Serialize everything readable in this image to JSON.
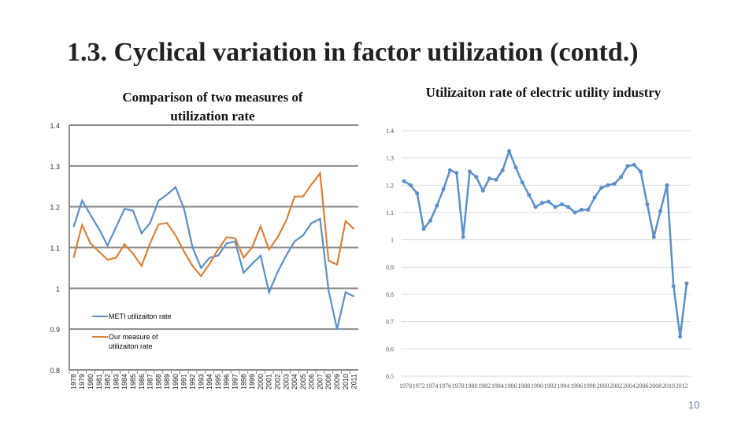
{
  "title": "1.3. Cyclical variation in factor utilization (contd.)",
  "page_number": "10",
  "chart_data": [
    {
      "type": "line",
      "title": "Comparison of two measures of utilization rate",
      "ylim": [
        0.8,
        1.4
      ],
      "yticks": [
        "0.8",
        "0.9",
        "1",
        "1.1",
        "1.2",
        "1.3",
        "1.4"
      ],
      "grid": true,
      "legend": "bottom-left",
      "categories": [
        "1978",
        "1979",
        "1980",
        "1981",
        "1982",
        "1983",
        "1984",
        "1985",
        "1986",
        "1987",
        "1988",
        "1989",
        "1990",
        "1991",
        "1992",
        "1993",
        "1994",
        "1995",
        "1996",
        "1997",
        "1998",
        "1999",
        "2000",
        "2001",
        "2002",
        "2003",
        "2004",
        "2005",
        "2006",
        "2007",
        "2008",
        "2009",
        "2010",
        "2011"
      ],
      "series": [
        {
          "name": "METI utilizaiton rate",
          "color": "#5b8fc7",
          "values": [
            1.15,
            1.215,
            1.18,
            1.145,
            1.105,
            1.15,
            1.195,
            1.19,
            1.135,
            1.16,
            1.215,
            1.23,
            1.248,
            1.195,
            1.1,
            1.05,
            1.075,
            1.08,
            1.11,
            1.115,
            1.038,
            1.06,
            1.08,
            0.99,
            1.04,
            1.08,
            1.115,
            1.13,
            1.16,
            1.17,
            0.995,
            0.9,
            0.99,
            0.98
          ]
        },
        {
          "name": "Our measure of utilizaiton rate",
          "color": "#d9823b",
          "values": [
            1.075,
            1.155,
            1.11,
            1.09,
            1.07,
            1.075,
            1.108,
            1.085,
            1.055,
            1.11,
            1.157,
            1.16,
            1.13,
            1.09,
            1.055,
            1.03,
            1.06,
            1.095,
            1.125,
            1.123,
            1.075,
            1.1,
            1.152,
            1.095,
            1.125,
            1.165,
            1.225,
            1.225,
            1.255,
            1.282,
            1.068,
            1.058,
            1.165,
            1.145
          ]
        }
      ]
    },
    {
      "type": "line",
      "title": "Utilizaiton rate of electric utility industry",
      "ylim": [
        0.5,
        1.4
      ],
      "yticks": [
        "0.5",
        "0.6",
        "0.7",
        "0.8",
        "0.9",
        "1",
        "1.1",
        "1.2",
        "1.3",
        "1.4"
      ],
      "grid": true,
      "markers": true,
      "x": [
        1970,
        1971,
        1972,
        1973,
        1974,
        1975,
        1976,
        1977,
        1978,
        1979,
        1980,
        1981,
        1982,
        1983,
        1984,
        1985,
        1986,
        1987,
        1988,
        1989,
        1990,
        1991,
        1992,
        1993,
        1994,
        1995,
        1996,
        1997,
        1998,
        1999,
        2000,
        2001,
        2002,
        2003,
        2004,
        2005,
        2006,
        2007,
        2008,
        2009,
        2010,
        2011,
        2012,
        2013
      ],
      "xticks": [
        "1970",
        "1972",
        "1974",
        "1976",
        "1978",
        "1980",
        "1982",
        "1984",
        "1986",
        "1988",
        "1990",
        "1992",
        "1994",
        "1996",
        "1998",
        "2000",
        "2002",
        "2004",
        "2006",
        "2008",
        "2010",
        "2012"
      ],
      "series": [
        {
          "color": "#5b8fc7",
          "values": [
            1.215,
            1.2,
            1.17,
            1.04,
            1.07,
            1.125,
            1.185,
            1.255,
            1.245,
            1.01,
            1.25,
            1.23,
            1.18,
            1.225,
            1.22,
            1.255,
            1.325,
            1.265,
            1.21,
            1.165,
            1.12,
            1.135,
            1.14,
            1.12,
            1.13,
            1.12,
            1.1,
            1.11,
            1.11,
            1.155,
            1.19,
            1.2,
            1.205,
            1.23,
            1.27,
            1.275,
            1.25,
            1.13,
            1.01,
            1.105,
            1.2,
            0.83,
            0.645,
            0.84
          ]
        }
      ]
    }
  ]
}
